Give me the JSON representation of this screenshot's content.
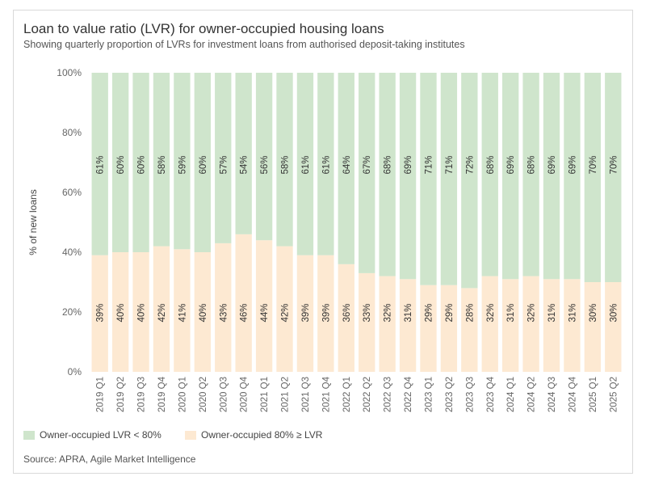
{
  "title": "Loan to value ratio (LVR) for owner-occupied housing loans",
  "subtitle": "Showing quarterly proportion of LVRs for investment loans from authorised deposit-taking institutes",
  "source": "Source: APRA, Agile Market Intelligence",
  "colors": {
    "low_lvr": "#cfe5cc",
    "high_lvr": "#fde9d2",
    "axis_text": "#666666",
    "label_text": "#333333"
  },
  "chart_data": {
    "type": "bar",
    "stacked": true,
    "ylabel": "% of new loans",
    "xlabel": "",
    "ylim": [
      0,
      100
    ],
    "yticks": [
      "0%",
      "20%",
      "40%",
      "60%",
      "80%",
      "100%"
    ],
    "categories": [
      "2019 Q1",
      "2019 Q2",
      "2019 Q3",
      "2019 Q4",
      "2020 Q1",
      "2020 Q2",
      "2020 Q3",
      "2020 Q4",
      "2021 Q1",
      "2021 Q2",
      "2021 Q3",
      "2021 Q4",
      "2022 Q1",
      "2022 Q2",
      "2022 Q3",
      "2022 Q4",
      "2023 Q1",
      "2023 Q2",
      "2023 Q3",
      "2023 Q4",
      "2024 Q1",
      "2024 Q2",
      "2024 Q3",
      "2024 Q4",
      "2025 Q1",
      "2025 Q2"
    ],
    "series": [
      {
        "name": "Owner-occupied 80% ≥ LVR",
        "values": [
          39,
          40,
          40,
          42,
          41,
          40,
          43,
          46,
          44,
          42,
          39,
          39,
          36,
          33,
          32,
          31,
          29,
          29,
          28,
          32,
          31,
          32,
          31,
          31,
          30,
          30
        ]
      },
      {
        "name": "Owner-occupied LVR < 80%",
        "values": [
          61,
          60,
          60,
          58,
          59,
          60,
          57,
          54,
          56,
          58,
          61,
          61,
          64,
          67,
          68,
          69,
          71,
          71,
          72,
          68,
          69,
          68,
          69,
          69,
          70,
          70
        ]
      }
    ],
    "legend_position": "bottom-left",
    "grid": false
  }
}
